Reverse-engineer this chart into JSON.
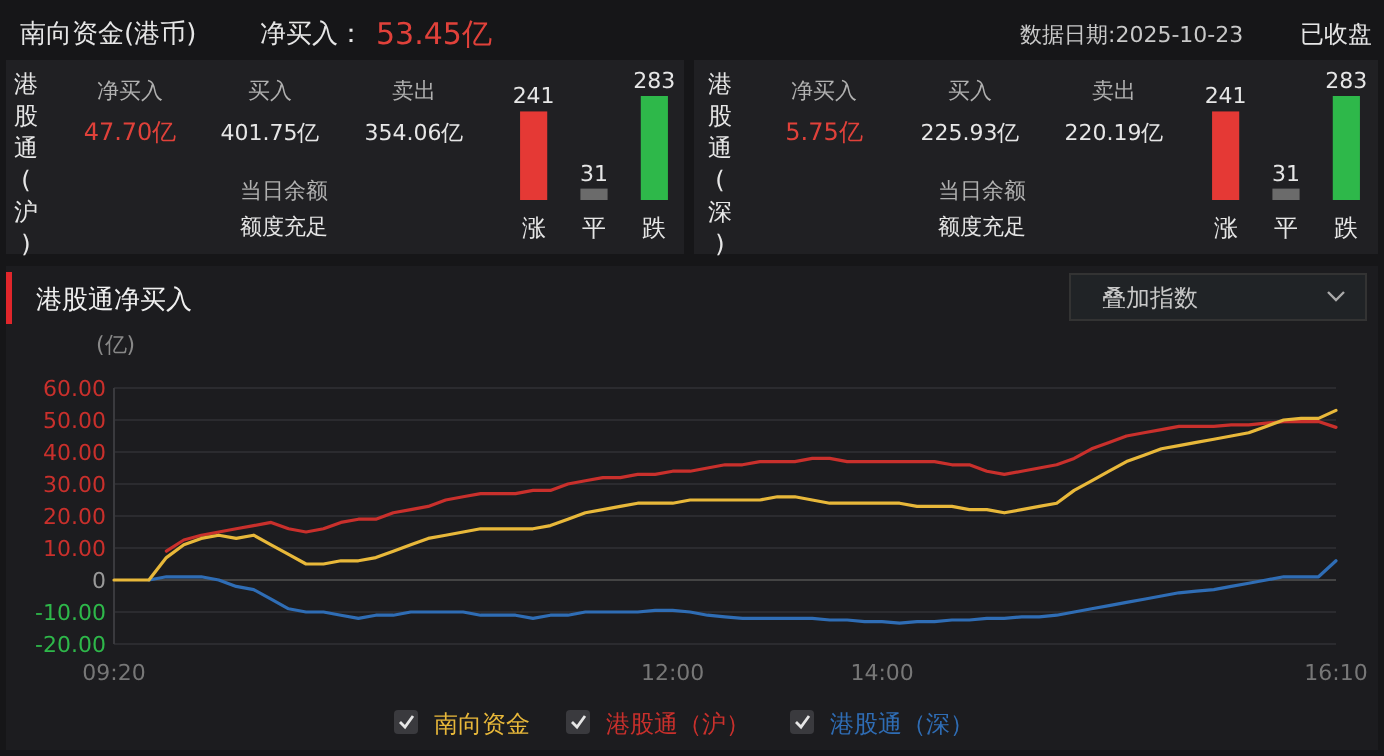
{
  "chart_data": [
    {
      "type": "other",
      "title": "南向资金(港币)",
      "annotations": [
        "净买入：",
        "53.45亿",
        "数据日期:2025-10-23",
        "已收盘"
      ]
    },
    {
      "type": "other",
      "title": "港股通(沪)",
      "annotations": [
        "净买入",
        "47.70亿",
        "买入",
        "401.75亿",
        "卖出",
        "354.06亿",
        "当日余额",
        "额度充足"
      ]
    },
    {
      "type": "bar",
      "categories": [
        "涨",
        "平",
        "跌"
      ],
      "values": [
        241,
        31,
        283
      ],
      "colors": [
        "#e53935",
        "#6b6b6b",
        "#2eb84a"
      ],
      "data_labels": true
    },
    {
      "type": "other",
      "title": "港股通(深)",
      "annotations": [
        "净买入",
        "5.75亿",
        "买入",
        "225.93亿",
        "卖出",
        "220.19亿",
        "当日余额",
        "额度充足"
      ]
    },
    {
      "type": "bar",
      "categories": [
        "涨",
        "平",
        "跌"
      ],
      "values": [
        241,
        31,
        283
      ],
      "colors": [
        "#e53935",
        "#6b6b6b",
        "#2eb84a"
      ],
      "data_labels": true
    },
    {
      "type": "line",
      "title": "港股通净买入",
      "ylabel": "(亿)",
      "annotations": [
        "叠加指数"
      ],
      "grid": "y",
      "legend": "bottom",
      "categories": [
        "09:20",
        null,
        null,
        null,
        null,
        null,
        null,
        null,
        null,
        null,
        null,
        null,
        null,
        null,
        null,
        null,
        null,
        null,
        null,
        null,
        null,
        null,
        null,
        null,
        null,
        null,
        null,
        null,
        null,
        null,
        null,
        null,
        "12:00",
        null,
        null,
        null,
        null,
        null,
        null,
        null,
        null,
        null,
        null,
        null,
        "14:00",
        null,
        null,
        null,
        null,
        null,
        null,
        null,
        null,
        null,
        null,
        null,
        null,
        null,
        null,
        null,
        null,
        null,
        null,
        null,
        null,
        null,
        null,
        null,
        null,
        null,
        "16:10"
      ],
      "ylim": [
        -20,
        60
      ],
      "yticks": [
        {
          "value": 60,
          "label": "60.00"
        },
        {
          "value": 50,
          "label": "50.00"
        },
        {
          "value": 40,
          "label": "40.00"
        },
        {
          "value": 30,
          "label": "30.00"
        },
        {
          "value": 20,
          "label": "20.00"
        },
        {
          "value": 10,
          "label": "10.00"
        },
        0,
        {
          "value": -10,
          "label": "-10.00"
        },
        {
          "value": -20,
          "label": "-20.00"
        }
      ],
      "series": [
        {
          "name": "南向资金",
          "color": "#e8b83a",
          "values": [
            0,
            0,
            0,
            7,
            11,
            13,
            14,
            13,
            14,
            11,
            8,
            5,
            5,
            6,
            6,
            7,
            9,
            11,
            13,
            14,
            15,
            16,
            16,
            16,
            16,
            17,
            19,
            21,
            22,
            23,
            24,
            24,
            24,
            25,
            25,
            25,
            25,
            25,
            26,
            26,
            25,
            24,
            24,
            24,
            24,
            24,
            23,
            23,
            23,
            22,
            22,
            21,
            22,
            23,
            24,
            28,
            31,
            34,
            37,
            39,
            41,
            42,
            43,
            44,
            45,
            46,
            48,
            50,
            50.5,
            50.5,
            53
          ]
        },
        {
          "name": "港股通（沪）",
          "color": "#c9302c",
          "values": [
            null,
            null,
            null,
            9,
            12.5,
            14,
            15,
            16,
            17,
            18,
            16,
            15,
            16,
            18,
            19,
            19,
            21,
            22,
            23,
            25,
            26,
            27,
            27,
            27,
            28,
            28,
            30,
            31,
            32,
            32,
            33,
            33,
            34,
            34,
            35,
            36,
            36,
            37,
            37,
            37,
            38,
            38,
            37,
            37,
            37,
            37,
            37,
            37,
            36,
            36,
            34,
            33,
            34,
            35,
            36,
            38,
            41,
            43,
            45,
            46,
            47,
            48,
            48,
            48,
            48.5,
            48.5,
            49,
            49.5,
            49.5,
            49.5,
            47.7
          ]
        },
        {
          "name": "港股通（深）",
          "color": "#2f6db5",
          "values": [
            null,
            null,
            0,
            1,
            1,
            1,
            0,
            -2,
            -3,
            -6,
            -9,
            -10,
            -10,
            -11,
            -12,
            -11,
            -11,
            -10,
            -10,
            -10,
            -10,
            -11,
            -11,
            -11,
            -12,
            -11,
            -11,
            -10,
            -10,
            -10,
            -10,
            -9.5,
            -9.5,
            -10,
            -11,
            -11.5,
            -12,
            -12,
            -12,
            -12,
            -12,
            -12.5,
            -12.5,
            -13,
            -13,
            -13.5,
            -13,
            -13,
            -12.5,
            -12.5,
            -12,
            -12,
            -11.5,
            -11.5,
            -11,
            -10,
            -9,
            -8,
            -7,
            -6,
            -5,
            -4,
            -3.5,
            -3,
            -2,
            -1,
            0,
            1,
            1,
            1,
            6
          ]
        }
      ]
    }
  ]
}
